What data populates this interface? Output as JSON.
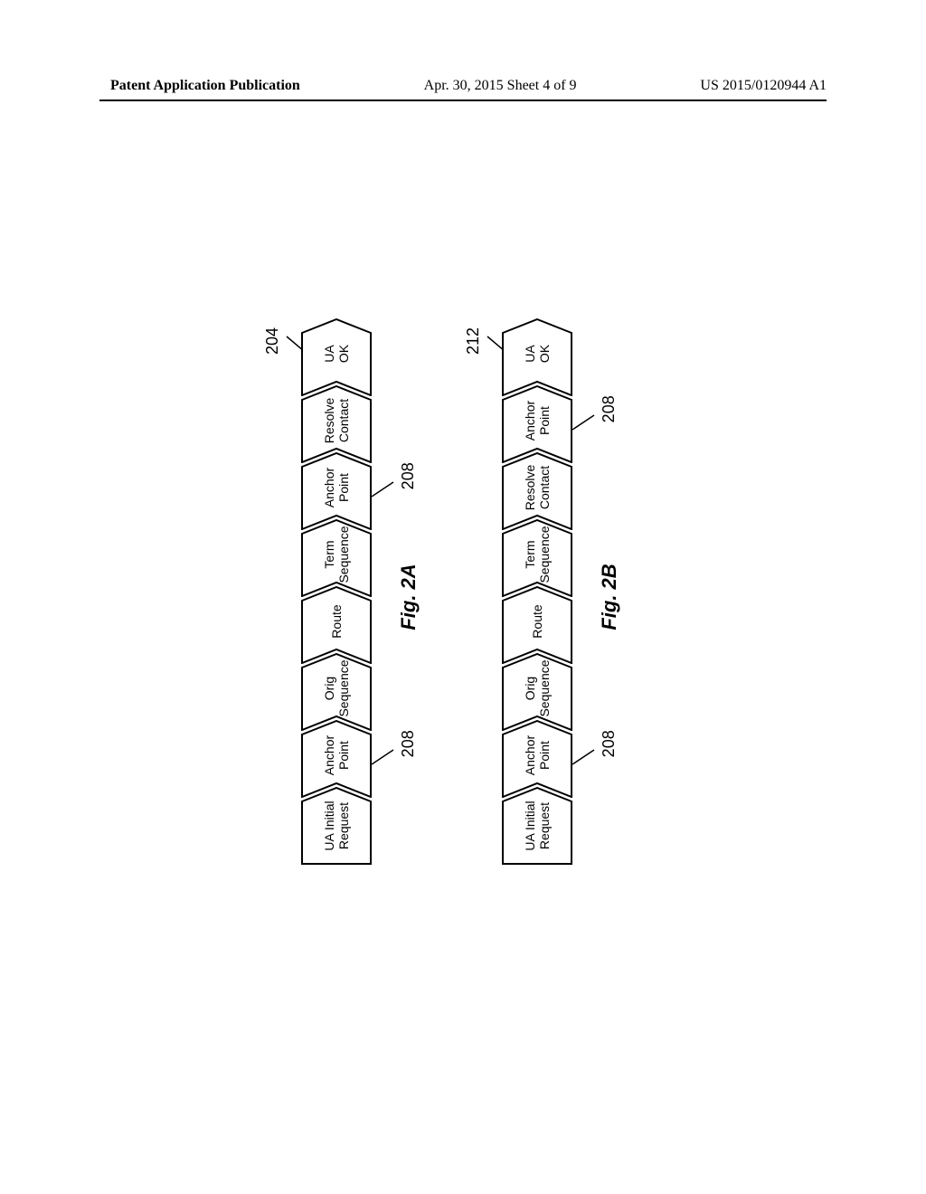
{
  "header": {
    "left": "Patent Application Publication",
    "mid": "Apr. 30, 2015  Sheet 4 of 9",
    "right": "US 2015/0120944 A1"
  },
  "stroke_color": "#000000",
  "fill_color": "#ffffff",
  "chevron": {
    "w": 86,
    "h": 78,
    "notch": 16
  },
  "figA": {
    "ref": "204",
    "label": "Fig. 2A",
    "anchor_ref": "208",
    "steps": [
      "UA Initial Request",
      "Anchor Point",
      "Orig Sequence",
      "Route",
      "Term Sequence",
      "Anchor Point",
      "Resolve Contact",
      "UA OK"
    ],
    "anchor_indices": [
      1,
      5
    ]
  },
  "figB": {
    "ref": "212",
    "label": "Fig. 2B",
    "anchor_ref": "208",
    "steps": [
      "UA Initial Request",
      "Anchor Point",
      "Orig Sequence",
      "Route",
      "Term Sequence",
      "Resolve Contact",
      "Anchor Point",
      "UA OK"
    ],
    "anchor_indices": [
      1,
      6
    ]
  }
}
